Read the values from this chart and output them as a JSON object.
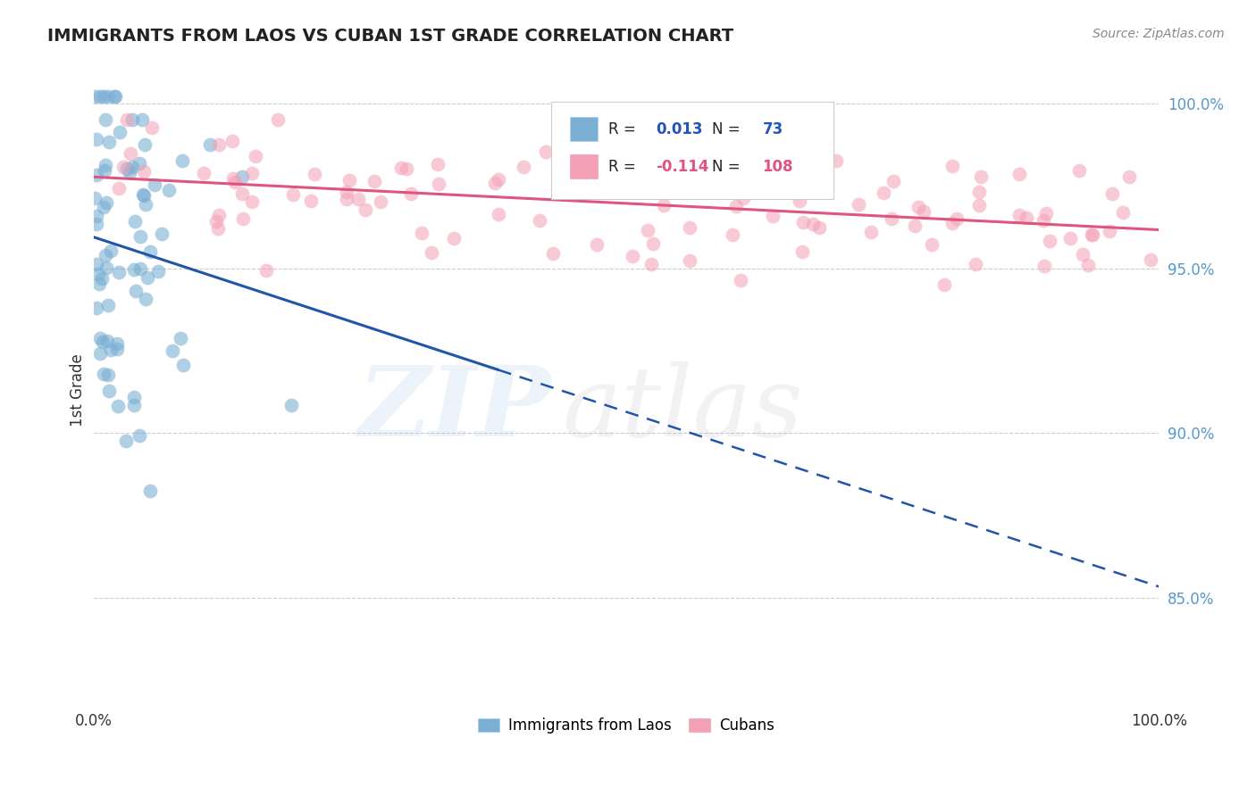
{
  "title": "IMMIGRANTS FROM LAOS VS CUBAN 1ST GRADE CORRELATION CHART",
  "source": "Source: ZipAtlas.com",
  "ylabel": "1st Grade",
  "yaxis_labels": [
    "100.0%",
    "95.0%",
    "90.0%",
    "85.0%"
  ],
  "yaxis_values": [
    1.0,
    0.95,
    0.9,
    0.85
  ],
  "xlim": [
    0.0,
    1.0
  ],
  "ylim": [
    0.818,
    1.008
  ],
  "legend1_r": "0.013",
  "legend1_n": "73",
  "legend2_r": "-0.114",
  "legend2_n": "108",
  "color_blue": "#7BAFD4",
  "color_pink": "#F4A0B5",
  "line_blue": "#2255AA",
  "line_pink": "#E05580",
  "watermark_zip": "ZIP",
  "watermark_atlas": "atlas",
  "grid_color": "#CCCCCC",
  "background_color": "#FFFFFF",
  "title_color": "#222222",
  "source_color": "#888888",
  "yaxis_color": "#5599CC",
  "xaxis_label_color": "#333333"
}
